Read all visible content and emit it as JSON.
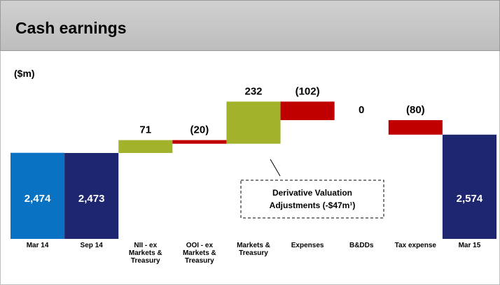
{
  "chart_data": {
    "type": "waterfall",
    "title": "Cash earnings",
    "unit_label": "($m)",
    "categories": [
      "Mar 14",
      "Sep 14",
      "NII - ex Markets & Treasury",
      "OOI - ex Markets & Treasury",
      "Markets & Treasury",
      "Expenses",
      "B&DDs",
      "Tax expense",
      "Mar 15"
    ],
    "measure": [
      "absolute",
      "absolute",
      "relative",
      "relative",
      "relative",
      "relative",
      "relative",
      "relative",
      "absolute"
    ],
    "values": [
      2474,
      2473,
      71,
      -20,
      232,
      -102,
      0,
      -80,
      2574
    ],
    "value_labels": [
      "2,474",
      "2,473",
      "71",
      "(20)",
      "232",
      "(102)",
      "0",
      "(80)",
      "2,574"
    ],
    "colors": [
      "#0a72c2",
      "#1f2670",
      "#a3b22b",
      "#c00000",
      "#a3b22b",
      "#c00000",
      "#c00000",
      "#c00000",
      "#1f2670"
    ],
    "ylim": [
      2000,
      2850
    ],
    "annotation": [
      "Derivative Valuation",
      "Adjustments (-$47m¹)"
    ]
  }
}
